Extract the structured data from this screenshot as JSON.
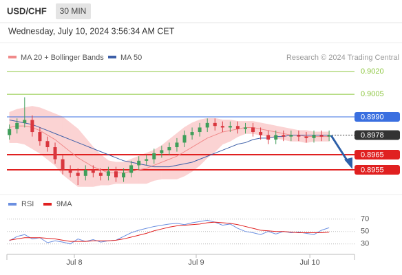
{
  "chart_data": {
    "type": "candlestick",
    "title": "USD/CHF",
    "timeframe": "30 MIN",
    "subtitle": "Wednesday, July 10, 2024 3:56:34 AM CET",
    "source": "Research © 2024 Trading Central",
    "xlim": [
      0,
      68.5
    ],
    "xticks": [
      {
        "value": 13.3,
        "label": "Jul 8"
      },
      {
        "value": 37.3,
        "label": "Jul 9"
      },
      {
        "value": 59.7,
        "label": "Jul 10"
      }
    ],
    "ylim": [
      0.894,
      0.90355
    ],
    "up_color": "#3f9e5a",
    "down_color": "#d9363e",
    "x": [
      0.5,
      2,
      3.5,
      5,
      6.5,
      8,
      9.5,
      11,
      12.5,
      14,
      15.5,
      17,
      18.5,
      20,
      21.5,
      23,
      24.5,
      26,
      27.5,
      29,
      30.5,
      32,
      33.5,
      35,
      36.5,
      38,
      39.5,
      41,
      42.5,
      44,
      45.5,
      47,
      48.5,
      50,
      51.5,
      53,
      54.5,
      56,
      57.5,
      59,
      60.5,
      62,
      63.5
    ],
    "open": [
      0.8978,
      0.8982,
      0.8986,
      0.8988,
      0.898,
      0.8974,
      0.897,
      0.8962,
      0.8955,
      0.8953,
      0.8951,
      0.8955,
      0.8953,
      0.8951,
      0.8954,
      0.895,
      0.8953,
      0.8958,
      0.8961,
      0.8962,
      0.8966,
      0.8968,
      0.897,
      0.8973,
      0.8978,
      0.898,
      0.8983,
      0.8986,
      0.8984,
      0.8983,
      0.8984,
      0.8982,
      0.8983,
      0.898,
      0.8978,
      0.8975,
      0.8978,
      0.8977,
      0.8978,
      0.8977,
      0.8976,
      0.8978,
      0.8977
    ],
    "high": [
      0.8985,
      0.8989,
      0.9003,
      0.8991,
      0.8983,
      0.8977,
      0.8973,
      0.8965,
      0.8958,
      0.8956,
      0.8958,
      0.8958,
      0.8956,
      0.8957,
      0.8957,
      0.8956,
      0.8961,
      0.8964,
      0.8965,
      0.8969,
      0.8971,
      0.8973,
      0.8976,
      0.8981,
      0.8983,
      0.8986,
      0.8989,
      0.8989,
      0.8987,
      0.8987,
      0.8987,
      0.8986,
      0.8986,
      0.8983,
      0.8981,
      0.8981,
      0.8981,
      0.8981,
      0.8981,
      0.898,
      0.8981,
      0.8981,
      0.8981
    ],
    "low": [
      0.8975,
      0.8979,
      0.8983,
      0.8977,
      0.8971,
      0.8967,
      0.8959,
      0.8952,
      0.895,
      0.8945,
      0.8948,
      0.895,
      0.8948,
      0.8948,
      0.8947,
      0.8947,
      0.895,
      0.8955,
      0.8958,
      0.8959,
      0.8963,
      0.8965,
      0.8967,
      0.897,
      0.8975,
      0.8977,
      0.898,
      0.8981,
      0.898,
      0.898,
      0.8979,
      0.8979,
      0.8977,
      0.8975,
      0.8972,
      0.8972,
      0.8974,
      0.8974,
      0.8974,
      0.8973,
      0.8973,
      0.8974,
      0.8974
    ],
    "close": [
      0.8982,
      0.8986,
      0.8988,
      0.898,
      0.8974,
      0.897,
      0.8962,
      0.8955,
      0.8953,
      0.8951,
      0.8955,
      0.8953,
      0.8951,
      0.8954,
      0.895,
      0.8953,
      0.8958,
      0.8961,
      0.8962,
      0.8966,
      0.8968,
      0.897,
      0.8973,
      0.8978,
      0.898,
      0.8983,
      0.8986,
      0.8984,
      0.8983,
      0.8984,
      0.8982,
      0.8983,
      0.898,
      0.8978,
      0.8975,
      0.8978,
      0.8977,
      0.8978,
      0.8977,
      0.8976,
      0.8978,
      0.8977,
      0.8978
    ],
    "series": [
      {
        "name": "MA 20 + Bollinger Bands",
        "color": "#f08a8a",
        "band_color": "#fbd3d3",
        "values": [
          0.8983,
          0.8984,
          0.8984,
          0.8983,
          0.8981,
          0.8978,
          0.8975,
          0.8971,
          0.8967,
          0.8963,
          0.896,
          0.8957,
          0.8955,
          0.8953,
          0.8953,
          0.8953,
          0.8954,
          0.8955,
          0.8956,
          0.8958,
          0.896,
          0.8962,
          0.8964,
          0.8967,
          0.897,
          0.8973,
          0.8976,
          0.8978,
          0.898,
          0.8981,
          0.8982,
          0.8983,
          0.8983,
          0.8982,
          0.8981,
          0.898,
          0.8979,
          0.8978,
          0.8978,
          0.8977,
          0.8977,
          0.8977,
          0.8977
        ],
        "upper": [
          0.8993,
          0.8995,
          0.8996,
          0.8997,
          0.8996,
          0.8994,
          0.8992,
          0.899,
          0.8986,
          0.8982,
          0.8976,
          0.897,
          0.8965,
          0.8961,
          0.896,
          0.896,
          0.8962,
          0.8964,
          0.8966,
          0.8968,
          0.8971,
          0.8975,
          0.8979,
          0.8983,
          0.8986,
          0.8988,
          0.8989,
          0.8989,
          0.8988,
          0.8988,
          0.8987,
          0.8987,
          0.8987,
          0.8986,
          0.8985,
          0.8984,
          0.8983,
          0.8982,
          0.8981,
          0.8981,
          0.898,
          0.898,
          0.898
        ],
        "lower": [
          0.8973,
          0.8973,
          0.8972,
          0.8969,
          0.8966,
          0.8962,
          0.8958,
          0.8952,
          0.8948,
          0.8944,
          0.8944,
          0.8944,
          0.8945,
          0.8945,
          0.8946,
          0.8946,
          0.8946,
          0.8946,
          0.8946,
          0.8948,
          0.8949,
          0.8949,
          0.8949,
          0.8951,
          0.8954,
          0.8958,
          0.8963,
          0.8967,
          0.8972,
          0.8974,
          0.8977,
          0.8979,
          0.8979,
          0.8978,
          0.8977,
          0.8976,
          0.8975,
          0.8974,
          0.8974,
          0.8973,
          0.8974,
          0.8974,
          0.8974
        ]
      },
      {
        "name": "MA 50",
        "color": "#3d5fa8",
        "values": [
          0.8988,
          0.8987,
          0.8986,
          0.8985,
          0.8983,
          0.8981,
          0.8979,
          0.8977,
          0.8975,
          0.8973,
          0.8971,
          0.8969,
          0.8967,
          0.8965,
          0.8963,
          0.8961,
          0.896,
          0.8959,
          0.8958,
          0.8957,
          0.8957,
          0.8957,
          0.8958,
          0.8959,
          0.896,
          0.8962,
          0.8964,
          0.8966,
          0.8968,
          0.897,
          0.8972,
          0.8973,
          0.8975,
          0.8976,
          0.8976,
          0.8977,
          0.8977,
          0.8978,
          0.8978,
          0.8978,
          0.8978,
          0.8978,
          0.8978
        ]
      }
    ],
    "levels": [
      {
        "value": 0.902,
        "label": "0.9020",
        "color": "#8cc63f",
        "style": "text"
      },
      {
        "value": 0.9005,
        "label": "0.9005",
        "color": "#8cc63f",
        "style": "text"
      },
      {
        "value": 0.899,
        "label": "0.8990",
        "color": "#3a6fe0",
        "style": "box"
      },
      {
        "value": 0.8978,
        "label": "0.8978",
        "color": "#333333",
        "style": "current"
      },
      {
        "value": 0.8965,
        "label": "0.8965",
        "color": "#e02020",
        "style": "box"
      },
      {
        "value": 0.8955,
        "label": "0.8955",
        "color": "#e02020",
        "style": "box"
      }
    ],
    "rsi": {
      "ylim": [
        11,
        85
      ],
      "yticks": [
        70,
        50,
        30
      ],
      "series": [
        {
          "name": "RSI",
          "color": "#6b8fe0",
          "values": [
            35,
            42,
            45,
            38,
            40,
            32,
            35,
            33,
            30,
            38,
            34,
            37,
            33,
            35,
            36,
            42,
            48,
            52,
            55,
            58,
            60,
            62,
            63,
            61,
            64,
            66,
            68,
            65,
            60,
            62,
            55,
            50,
            48,
            45,
            50,
            46,
            50,
            48,
            49,
            47,
            45,
            52,
            56
          ]
        },
        {
          "name": "9MA",
          "color": "#e02020",
          "values": [
            36,
            38,
            40,
            40,
            40,
            39,
            38,
            36,
            34,
            34,
            34,
            35,
            35,
            35,
            36,
            38,
            41,
            44,
            47,
            51,
            54,
            57,
            59,
            60,
            61,
            62,
            64,
            65,
            64,
            63,
            61,
            58,
            55,
            52,
            51,
            50,
            50,
            49,
            48,
            48,
            48,
            48,
            49
          ]
        }
      ]
    }
  }
}
